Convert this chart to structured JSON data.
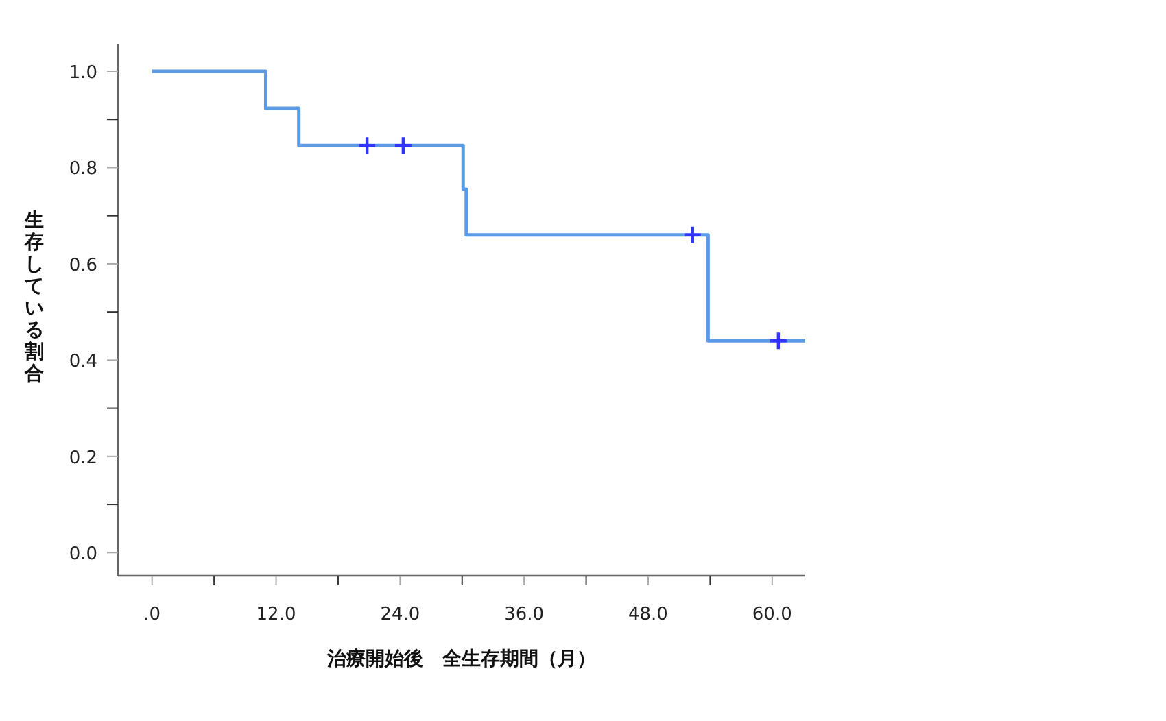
{
  "chart_data": {
    "type": "step",
    "xlabel": "治療開始後　全生存期間（月）",
    "ylabel": "生存している割合",
    "xlim": [
      -3.3,
      63.2
    ],
    "ylim": [
      -0.048,
      1.057
    ],
    "xticks": [
      {
        "value": 0,
        "label": ".0"
      },
      {
        "value": 6,
        "label": null
      },
      {
        "value": 12,
        "label": "12.0"
      },
      {
        "value": 18,
        "label": null
      },
      {
        "value": 24,
        "label": "24.0"
      },
      {
        "value": 30,
        "label": null
      },
      {
        "value": 36,
        "label": "36.0"
      },
      {
        "value": 42,
        "label": null
      },
      {
        "value": 48,
        "label": "48.0"
      },
      {
        "value": 54,
        "label": null
      },
      {
        "value": 60,
        "label": "60.0"
      }
    ],
    "yticks": [
      {
        "value": 0,
        "label": "0.0"
      },
      {
        "value": 0.1,
        "label": null
      },
      {
        "value": 0.2,
        "label": "0.2"
      },
      {
        "value": 0.3,
        "label": null
      },
      {
        "value": 0.4,
        "label": "0.4"
      },
      {
        "value": 0.5,
        "label": null
      },
      {
        "value": 0.6,
        "label": "0.6"
      },
      {
        "value": 0.7,
        "label": null
      },
      {
        "value": 0.8,
        "label": "0.8"
      },
      {
        "value": 0.9,
        "label": null
      },
      {
        "value": 1.0,
        "label": "1.0"
      }
    ],
    "grid": false,
    "line_style": "solid",
    "series": [
      {
        "color": "#5b9be6",
        "marker": "none",
        "x": [
          0,
          11.0,
          14.2,
          30.1,
          30.4,
          53.8,
          63.2
        ],
        "values": [
          1.0,
          0.923,
          0.846,
          0.755,
          0.66,
          0.44,
          0.44
        ]
      },
      {
        "type": "scatter",
        "color": "#3333ff",
        "marker": "cross",
        "x": [
          20.8,
          24.3,
          52.3,
          60.6
        ],
        "values": [
          0.846,
          0.846,
          0.66,
          0.44
        ]
      }
    ]
  }
}
